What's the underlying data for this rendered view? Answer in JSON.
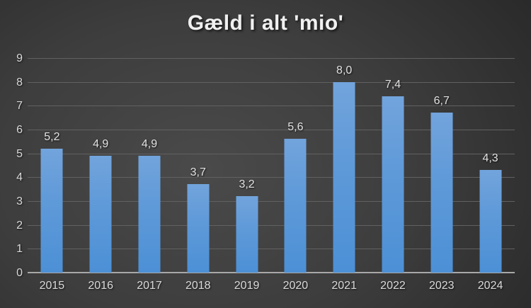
{
  "title": "Gæld i alt 'mio'",
  "colors": {
    "background_center": "#4a4a4a",
    "background_edge": "#212121",
    "bar_gradient_top": "#72a4dc",
    "bar_gradient_bottom": "#4c90d6",
    "gridline": "#616161",
    "axis_line": "#a8a8a8",
    "tick_label": "#dadada",
    "title_color": "#f0f0f0"
  },
  "chart_data": {
    "type": "bar",
    "title": "Gæld i alt 'mio'",
    "categories": [
      "2015",
      "2016",
      "2017",
      "2018",
      "2019",
      "2020",
      "2021",
      "2022",
      "2023",
      "2024"
    ],
    "values": [
      5.2,
      4.9,
      4.9,
      3.7,
      3.2,
      5.6,
      8.0,
      7.4,
      6.7,
      4.3
    ],
    "value_labels": [
      "5,2",
      "4,9",
      "4,9",
      "3,7",
      "3,2",
      "5,6",
      "8,0",
      "7,4",
      "6,7",
      "4,3"
    ],
    "y_ticks": [
      0,
      1,
      2,
      3,
      4,
      5,
      6,
      7,
      8,
      9
    ],
    "ylim": [
      0,
      9
    ],
    "xlabel": "",
    "ylabel": "",
    "grid": true,
    "legend_position": "none"
  }
}
